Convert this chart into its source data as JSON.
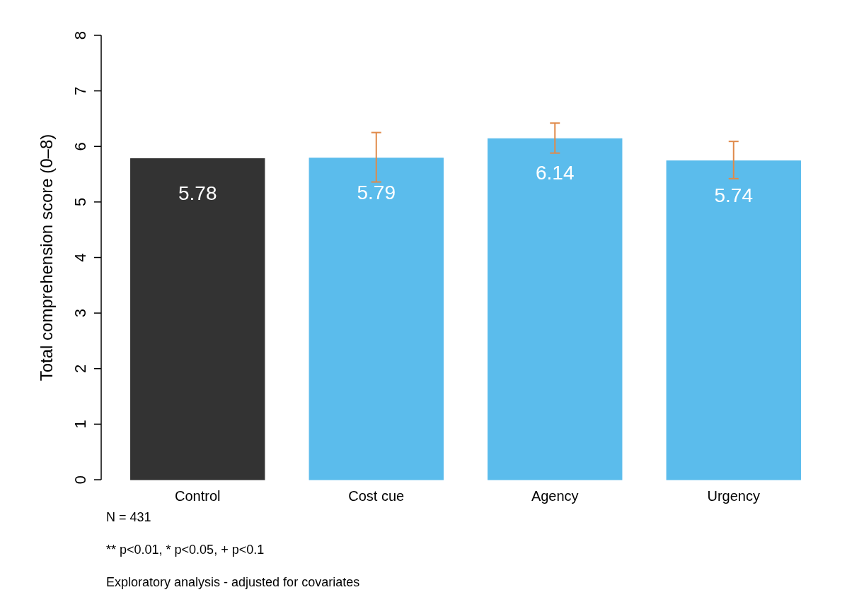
{
  "chart_data": {
    "type": "bar",
    "ylabel": "Total comprehension score (0–8)",
    "categories": [
      "Control",
      "Cost cue",
      "Agency",
      "Urgency"
    ],
    "values": [
      5.78,
      5.79,
      6.14,
      5.74
    ],
    "colors": [
      "#333333",
      "#5bbcec",
      "#5bbcec",
      "#5bbcec"
    ],
    "errors": [
      null,
      [
        5.36,
        6.25
      ],
      [
        5.88,
        6.42
      ],
      [
        5.42,
        6.09
      ]
    ],
    "ylim": [
      0,
      8
    ],
    "yticks": [
      0,
      1,
      2,
      3,
      4,
      5,
      6,
      7,
      8
    ],
    "grid": false,
    "data_labels": true,
    "annotations": [
      "N = 431",
      "** p<0.01, * p<0.05, + p<0.1",
      "Exploratory analysis - adjusted for covariates"
    ]
  }
}
